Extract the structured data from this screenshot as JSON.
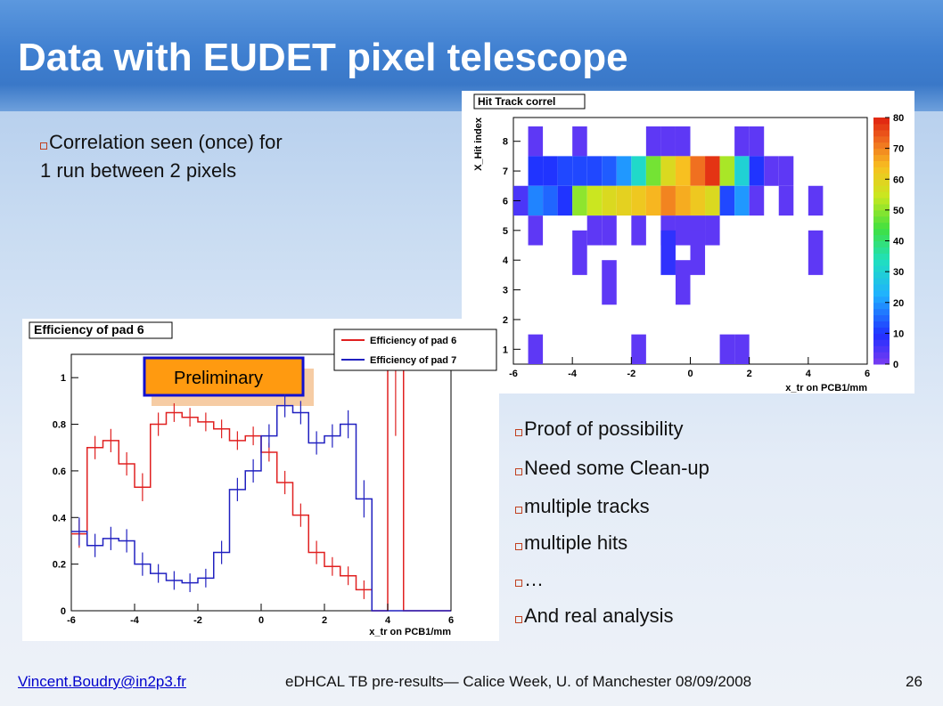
{
  "slide": {
    "title": "Data with EUDET pixel telescope",
    "bullets_top": [
      "Correlation seen (once) for",
      "1 run between 2 pixels"
    ],
    "bullets_right": [
      "Proof of possibility",
      "Need some Clean-up",
      "multiple tracks",
      "multiple hits",
      "…",
      "And real analysis"
    ],
    "footer": {
      "email": "Vincent.Boudry@in2p3.fr",
      "center": "eDHCAL TB pre-results— Calice Week, U. of Manchester 08/09/2008",
      "page": "26"
    }
  },
  "chart_data": [
    {
      "type": "heatmap",
      "title": "Hit Track correl",
      "xlabel": "x_tr on PCB1/mm",
      "ylabel": "X_Hit index",
      "xlim": [
        -6,
        6
      ],
      "ylim": [
        0.5,
        8.8
      ],
      "x_ticks": [
        "-6",
        "-4",
        "-2",
        "0",
        "2",
        "4",
        "6"
      ],
      "y_ticks": [
        "1",
        "2",
        "3",
        "4",
        "5",
        "6",
        "7",
        "8"
      ],
      "z_range": [
        0,
        80
      ],
      "colorbar_ticks": [
        "0",
        "10",
        "20",
        "30",
        "40",
        "50",
        "60",
        "70",
        "80"
      ],
      "bin_width": 0.5,
      "bins_x_low_edge_by_row": {
        "1": [
          -5.5,
          -1.5,
          1.0,
          1.5
        ],
        "2": [
          -2.5
        ],
        "3": [
          -2.5,
          -0.5
        ],
        "4": [
          -4.0,
          -0.5,
          4.0
        ],
        "5": [
          -5.5,
          -3.5,
          -3.0,
          -2.0,
          -1.0,
          -0.5,
          0.5,
          4.0
        ]
      },
      "cells": [
        {
          "x": -5.25,
          "y": 8,
          "z": 3
        },
        {
          "x": -3.75,
          "y": 8,
          "z": 3
        },
        {
          "x": -1.25,
          "y": 8,
          "z": 3
        },
        {
          "x": -0.75,
          "y": 8,
          "z": 3
        },
        {
          "x": -0.25,
          "y": 8,
          "z": 3
        },
        {
          "x": 1.75,
          "y": 8,
          "z": 3
        },
        {
          "x": 2.25,
          "y": 8,
          "z": 3
        },
        {
          "x": -5.25,
          "y": 7,
          "z": 10
        },
        {
          "x": -4.75,
          "y": 7,
          "z": 10
        },
        {
          "x": -4.25,
          "y": 7,
          "z": 12
        },
        {
          "x": -3.75,
          "y": 7,
          "z": 12
        },
        {
          "x": -3.25,
          "y": 7,
          "z": 12
        },
        {
          "x": -2.75,
          "y": 7,
          "z": 14
        },
        {
          "x": -2.25,
          "y": 7,
          "z": 20
        },
        {
          "x": -1.75,
          "y": 7,
          "z": 32
        },
        {
          "x": -1.25,
          "y": 7,
          "z": 48
        },
        {
          "x": -0.75,
          "y": 7,
          "z": 58
        },
        {
          "x": -0.25,
          "y": 7,
          "z": 64
        },
        {
          "x": 0.25,
          "y": 7,
          "z": 72
        },
        {
          "x": 0.75,
          "y": 7,
          "z": 78
        },
        {
          "x": 1.25,
          "y": 7,
          "z": 52
        },
        {
          "x": 1.75,
          "y": 7,
          "z": 30
        },
        {
          "x": 2.25,
          "y": 7,
          "z": 10
        },
        {
          "x": 2.75,
          "y": 7,
          "z": 3
        },
        {
          "x": 3.25,
          "y": 7,
          "z": 3
        },
        {
          "x": -5.75,
          "y": 6,
          "z": 5
        },
        {
          "x": -5.25,
          "y": 6,
          "z": 18
        },
        {
          "x": -4.75,
          "y": 6,
          "z": 15
        },
        {
          "x": -4.25,
          "y": 6,
          "z": 10
        },
        {
          "x": -3.75,
          "y": 6,
          "z": 50
        },
        {
          "x": -3.25,
          "y": 6,
          "z": 55
        },
        {
          "x": -2.75,
          "y": 6,
          "z": 58
        },
        {
          "x": -2.25,
          "y": 6,
          "z": 60
        },
        {
          "x": -1.75,
          "y": 6,
          "z": 62
        },
        {
          "x": -1.25,
          "y": 6,
          "z": 65
        },
        {
          "x": -0.75,
          "y": 6,
          "z": 70
        },
        {
          "x": -0.25,
          "y": 6,
          "z": 66
        },
        {
          "x": 0.25,
          "y": 6,
          "z": 62
        },
        {
          "x": 0.75,
          "y": 6,
          "z": 58
        },
        {
          "x": 1.25,
          "y": 6,
          "z": 12
        },
        {
          "x": 1.75,
          "y": 6,
          "z": 20
        },
        {
          "x": 2.25,
          "y": 6,
          "z": 3
        },
        {
          "x": 3.25,
          "y": 6,
          "z": 3
        },
        {
          "x": 4.25,
          "y": 6,
          "z": 3
        },
        {
          "x": -5.25,
          "y": 5,
          "z": 3
        },
        {
          "x": -3.25,
          "y": 5,
          "z": 3
        },
        {
          "x": -2.75,
          "y": 5,
          "z": 3
        },
        {
          "x": -1.75,
          "y": 5,
          "z": 3
        },
        {
          "x": -0.75,
          "y": 5,
          "z": 3
        },
        {
          "x": -0.25,
          "y": 5,
          "z": 3
        },
        {
          "x": 0.25,
          "y": 5,
          "z": 3
        },
        {
          "x": 0.75,
          "y": 5,
          "z": 3
        },
        {
          "x": -3.75,
          "y": 4.5,
          "z": 3
        },
        {
          "x": -0.75,
          "y": 4.5,
          "z": 8
        },
        {
          "x": 0.25,
          "y": 4.5,
          "z": 3
        },
        {
          "x": 4.25,
          "y": 4.5,
          "z": 3
        },
        {
          "x": -2.75,
          "y": 3,
          "z": 3
        },
        {
          "x": -0.25,
          "y": 3,
          "z": 3
        },
        {
          "x": -5.25,
          "y": 1,
          "z": 3
        },
        {
          "x": -1.75,
          "y": 1,
          "z": 3
        },
        {
          "x": 1.25,
          "y": 1,
          "z": 3
        },
        {
          "x": 1.75,
          "y": 1,
          "z": 3
        }
      ]
    },
    {
      "type": "line",
      "title": "Efficiency of pad 6",
      "xlabel": "x_tr on PCB1/mm",
      "ylabel": "",
      "xlim": [
        -6,
        6
      ],
      "ylim": [
        0,
        1.1
      ],
      "x_ticks": [
        "-6",
        "-4",
        "-2",
        "0",
        "2",
        "4",
        "6"
      ],
      "y_ticks": [
        "0",
        "0.2",
        "0.4",
        "0.6",
        "0.8",
        "1"
      ],
      "annotation": "Preliminary",
      "series": [
        {
          "name": "Efficiency of pad 6",
          "color": "#e02020",
          "x": [
            -5.75,
            -5.25,
            -4.75,
            -4.25,
            -3.75,
            -3.25,
            -2.75,
            -2.25,
            -1.75,
            -1.25,
            -0.75,
            -0.25,
            0.25,
            0.75,
            1.25,
            1.75,
            2.25,
            2.75,
            3.25,
            3.75,
            4.25,
            4.75,
            5.25,
            5.75
          ],
          "y": [
            0.33,
            0.7,
            0.73,
            0.63,
            0.53,
            0.8,
            0.85,
            0.83,
            0.81,
            0.78,
            0.73,
            0.75,
            0.68,
            0.55,
            0.41,
            0.25,
            0.19,
            0.15,
            0.09,
            0.0,
            1.05,
            0.0,
            0.0,
            0.0
          ],
          "err": [
            0.06,
            0.05,
            0.05,
            0.05,
            0.06,
            0.05,
            0.04,
            0.04,
            0.04,
            0.04,
            0.04,
            0.04,
            0.04,
            0.05,
            0.05,
            0.05,
            0.04,
            0.04,
            0.04,
            0,
            0.3,
            0,
            0,
            0
          ]
        },
        {
          "name": "Efficiency of pad 7",
          "color": "#2020c0",
          "x": [
            -5.75,
            -5.25,
            -4.75,
            -4.25,
            -3.75,
            -3.25,
            -2.75,
            -2.25,
            -1.75,
            -1.25,
            -0.75,
            -0.25,
            0.25,
            0.75,
            1.25,
            1.75,
            2.25,
            2.75,
            3.25,
            3.75,
            4.25,
            4.75,
            5.25,
            5.75
          ],
          "y": [
            0.34,
            0.28,
            0.31,
            0.3,
            0.2,
            0.16,
            0.13,
            0.12,
            0.14,
            0.25,
            0.52,
            0.6,
            0.75,
            0.88,
            0.85,
            0.72,
            0.75,
            0.8,
            0.48,
            0.0,
            0.0,
            0.0,
            0.0,
            0.0
          ],
          "err": [
            0.06,
            0.05,
            0.05,
            0.05,
            0.05,
            0.04,
            0.04,
            0.04,
            0.04,
            0.05,
            0.05,
            0.05,
            0.05,
            0.05,
            0.05,
            0.05,
            0.05,
            0.06,
            0.08,
            0,
            0,
            0,
            0,
            0
          ]
        }
      ]
    }
  ]
}
